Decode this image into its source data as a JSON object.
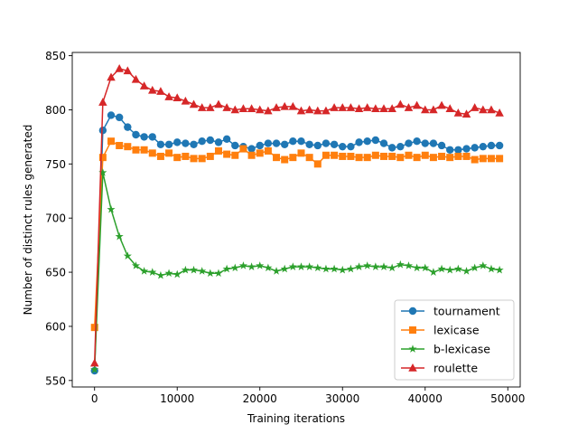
{
  "chart_data": {
    "type": "line",
    "title": "",
    "xlabel": "Training iterations",
    "ylabel": "Number of distinct rules generated",
    "xlim": [
      -2700,
      51500
    ],
    "ylim": [
      544,
      853
    ],
    "xticks": [
      0,
      10000,
      20000,
      30000,
      40000,
      50000
    ],
    "yticks": [
      550,
      600,
      650,
      700,
      750,
      800,
      850
    ],
    "grid": false,
    "legend_position": "lower-right",
    "x": [
      0,
      1000,
      2000,
      3000,
      4000,
      5000,
      6000,
      7000,
      8000,
      9000,
      10000,
      11000,
      12000,
      13000,
      14000,
      15000,
      16000,
      17000,
      18000,
      19000,
      20000,
      21000,
      22000,
      23000,
      24000,
      25000,
      26000,
      27000,
      28000,
      29000,
      30000,
      31000,
      32000,
      33000,
      34000,
      35000,
      36000,
      37000,
      38000,
      39000,
      40000,
      41000,
      42000,
      43000,
      44000,
      45000,
      46000,
      47000,
      48000,
      49000
    ],
    "series": [
      {
        "name": "tournament",
        "color": "#1f77b4",
        "marker": "circle",
        "values": [
          559,
          781,
          795,
          793,
          784,
          777,
          775,
          775,
          768,
          768,
          770,
          769,
          768,
          771,
          772,
          770,
          773,
          767,
          766,
          764,
          767,
          769,
          769,
          768,
          771,
          771,
          768,
          767,
          769,
          768,
          766,
          766,
          770,
          771,
          772,
          769,
          765,
          766,
          769,
          771,
          769,
          769,
          767,
          763,
          763,
          764,
          765,
          766,
          767,
          767
        ]
      },
      {
        "name": "lexicase",
        "color": "#ff7f0e",
        "marker": "square",
        "values": [
          599,
          756,
          771,
          767,
          766,
          763,
          763,
          760,
          757,
          760,
          756,
          757,
          755,
          755,
          757,
          762,
          759,
          758,
          764,
          758,
          760,
          762,
          756,
          754,
          756,
          760,
          756,
          750,
          758,
          758,
          757,
          757,
          756,
          756,
          758,
          757,
          757,
          756,
          758,
          756,
          758,
          756,
          757,
          756,
          757,
          757,
          754,
          755,
          755,
          755
        ]
      },
      {
        "name": "b-lexicase",
        "color": "#2ca02c",
        "marker": "star",
        "values": [
          560,
          742,
          708,
          683,
          665,
          656,
          651,
          650,
          647,
          649,
          648,
          652,
          652,
          651,
          649,
          649,
          653,
          654,
          656,
          655,
          656,
          654,
          651,
          653,
          655,
          655,
          655,
          654,
          653,
          653,
          652,
          653,
          655,
          656,
          655,
          655,
          654,
          657,
          656,
          654,
          654,
          650,
          653,
          652,
          653,
          651,
          654,
          656,
          653,
          652
        ]
      },
      {
        "name": "roulette",
        "color": "#d62728",
        "marker": "triangle",
        "values": [
          566,
          807,
          830,
          838,
          836,
          828,
          822,
          818,
          817,
          812,
          811,
          808,
          805,
          802,
          802,
          805,
          802,
          800,
          801,
          801,
          800,
          799,
          802,
          803,
          803,
          799,
          800,
          799,
          799,
          802,
          802,
          802,
          801,
          802,
          801,
          801,
          801,
          805,
          802,
          804,
          800,
          800,
          804,
          801,
          797,
          796,
          802,
          800,
          800,
          797
        ]
      }
    ]
  }
}
